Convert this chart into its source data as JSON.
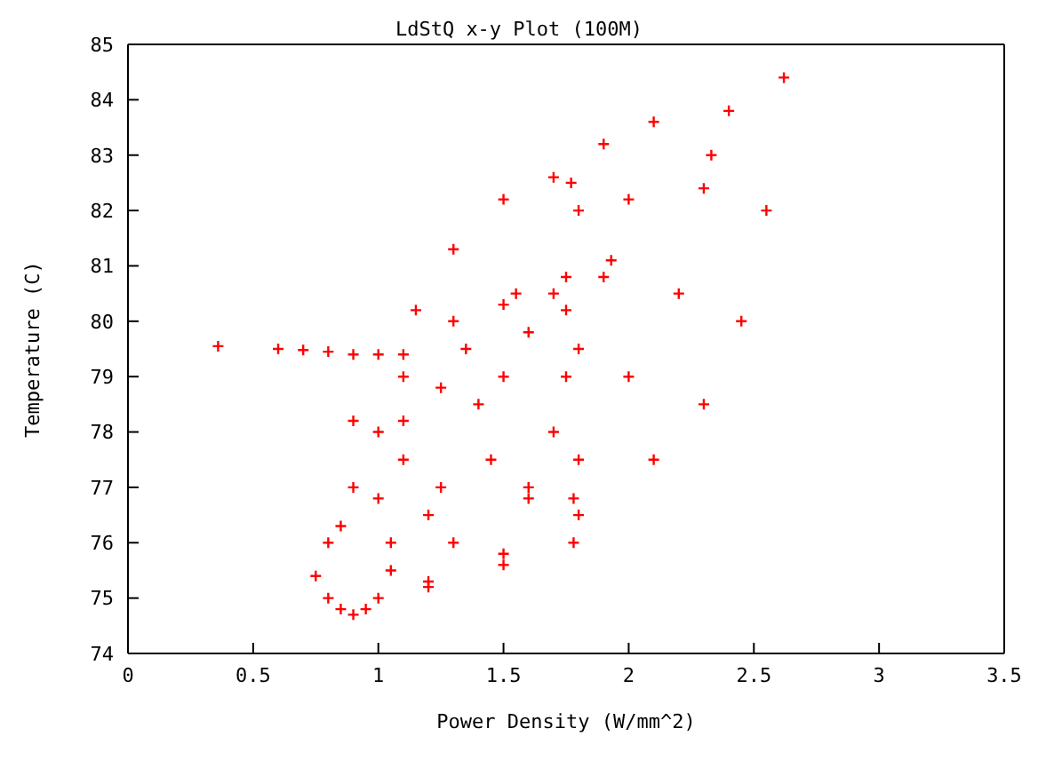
{
  "chart_data": {
    "type": "scatter",
    "title": "LdStQ x-y Plot (100M)",
    "xlabel": "Power Density (W/mm^2)",
    "ylabel": "Temperature (C)",
    "xlim": [
      0,
      3.5
    ],
    "ylim": [
      74,
      85
    ],
    "xticks": [
      0,
      0.5,
      1,
      1.5,
      2,
      2.5,
      3,
      3.5
    ],
    "yticks": [
      74,
      75,
      76,
      77,
      78,
      79,
      80,
      81,
      82,
      83,
      84,
      85
    ],
    "marker": "cross",
    "grid": false,
    "series": [
      {
        "color": "#ff0000",
        "x": [
          0.9,
          1.2,
          1.5,
          1.8,
          2.1,
          2.3,
          2.45,
          2.55,
          2.62,
          2.4,
          2.1,
          1.9,
          1.7,
          1.5,
          1.3,
          1.15,
          1.1,
          1.0,
          0.9,
          0.8,
          0.75,
          0.85,
          2.33,
          2.3,
          2.0,
          1.8,
          2.2,
          2.0,
          1.8,
          1.6,
          1.3,
          1.05,
          0.36,
          0.6,
          0.7,
          0.8,
          0.9,
          1.0,
          1.1,
          1.3,
          1.5,
          1.7,
          1.9,
          1.93,
          1.8,
          1.7,
          1.6,
          1.4,
          1.35,
          1.5,
          1.55,
          1.45,
          1.25,
          1.2,
          1.0,
          0.85,
          1.1,
          1.25,
          1.6,
          1.75,
          1.77,
          1.75,
          1.75,
          1.78,
          1.78,
          1.5,
          1.2,
          1.0,
          0.95,
          0.8,
          1.05,
          1.1,
          0.9
        ],
        "values": [
          74.7,
          75.2,
          75.8,
          76.5,
          77.5,
          78.5,
          80,
          82,
          84.4,
          83.8,
          83.6,
          83.2,
          82.6,
          82.2,
          81.3,
          80.2,
          79,
          78,
          77,
          76,
          75.4,
          74.8,
          83.0,
          82.4,
          82.2,
          82.0,
          80.5,
          79,
          77.5,
          76.8,
          76,
          75.5,
          79.55,
          79.5,
          79.48,
          79.45,
          79.4,
          79.4,
          79.4,
          80.0,
          80.3,
          80.5,
          80.8,
          81.1,
          79.5,
          78,
          77,
          78.5,
          79.5,
          79,
          80.5,
          77.5,
          77,
          76.5,
          76.8,
          76.3,
          78.2,
          78.8,
          79.8,
          80.2,
          82.5,
          80.8,
          79,
          76.8,
          76.0,
          75.6,
          75.3,
          75.0,
          74.8,
          75.0,
          76.0,
          77.5,
          78.2
        ]
      }
    ]
  }
}
